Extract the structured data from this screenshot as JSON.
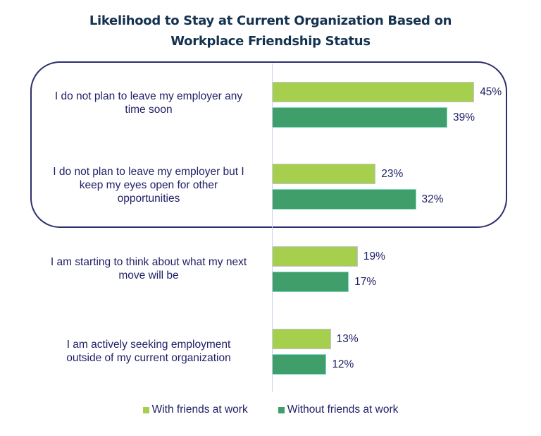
{
  "title_line1": "Likelihood to Stay at Current Organization Based on",
  "title_line2": "Workplace Friendship Status",
  "colors": {
    "with_friends": "#a6cf4e",
    "without_friends": "#3f9e69",
    "text": "#1f1f66",
    "title": "#14324f",
    "highlight_border": "#2d2e6e"
  },
  "categories": [
    {
      "label_lines": [
        "I do not plan to leave my employer any",
        "time soon"
      ],
      "with_label": "45%",
      "without_label": "39%"
    },
    {
      "label_lines": [
        "I do not plan to leave my employer but I",
        "keep my eyes open for other",
        "opportunities"
      ],
      "with_label": "23%",
      "without_label": "32%"
    },
    {
      "label_lines": [
        "I am starting to think about what my next",
        "move will be"
      ],
      "with_label": "19%",
      "without_label": "17%"
    },
    {
      "label_lines": [
        "I am actively seeking employment",
        "outside of my current organization"
      ],
      "with_label": "13%",
      "without_label": "12%"
    }
  ],
  "legend": {
    "with_label": "With friends at work",
    "without_label": "Without friends at work"
  },
  "chart_data": {
    "type": "bar",
    "orientation": "horizontal",
    "title": "Likelihood to Stay at Current Organization Based on Workplace Friendship Status",
    "xlabel": "",
    "ylabel": "",
    "categories": [
      "I do not plan to leave my employer any time soon",
      "I do not plan to leave my employer but I keep my eyes open for other opportunities",
      "I am starting to think about what my next move will be",
      "I am actively seeking employment outside of my current organization"
    ],
    "series": [
      {
        "name": "With friends at work",
        "values": [
          45,
          23,
          19,
          13
        ],
        "color": "#a6cf4e"
      },
      {
        "name": "Without friends at work",
        "values": [
          39,
          32,
          17,
          12
        ],
        "color": "#3f9e69"
      }
    ],
    "value_format": "percent",
    "data_labels": true,
    "grid": false,
    "legend_position": "bottom",
    "annotations": [
      "Rounded box highlights first two categories"
    ]
  }
}
